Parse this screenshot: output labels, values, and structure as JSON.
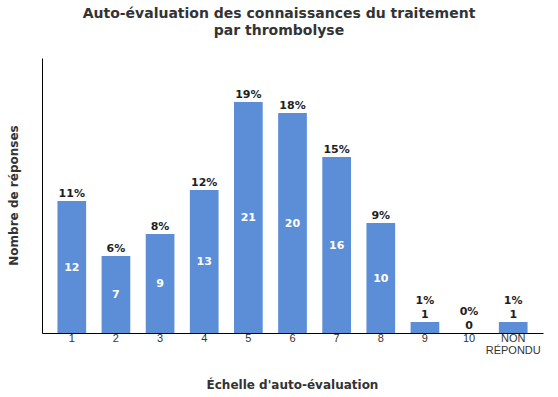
{
  "chart_data": {
    "type": "bar",
    "title": "Auto-évaluation des connaissances du traitement\npar thrombolyse",
    "xlabel": "Échelle d'auto-évaluation",
    "ylabel": "Nombre de réponses",
    "categories": [
      "1",
      "2",
      "3",
      "4",
      "5",
      "6",
      "7",
      "8",
      "9",
      "10",
      "NON\nRÉPONDU"
    ],
    "values": [
      12,
      7,
      9,
      13,
      21,
      20,
      16,
      10,
      1,
      0,
      1
    ],
    "percentages": [
      "11%",
      "6%",
      "8%",
      "12%",
      "19%",
      "18%",
      "15%",
      "9%",
      "1%",
      "0%",
      "1%"
    ],
    "color": "#5B8ED6",
    "ylim": [
      0,
      25
    ],
    "grid": false,
    "data_labels": true,
    "tick_labels": "x"
  }
}
